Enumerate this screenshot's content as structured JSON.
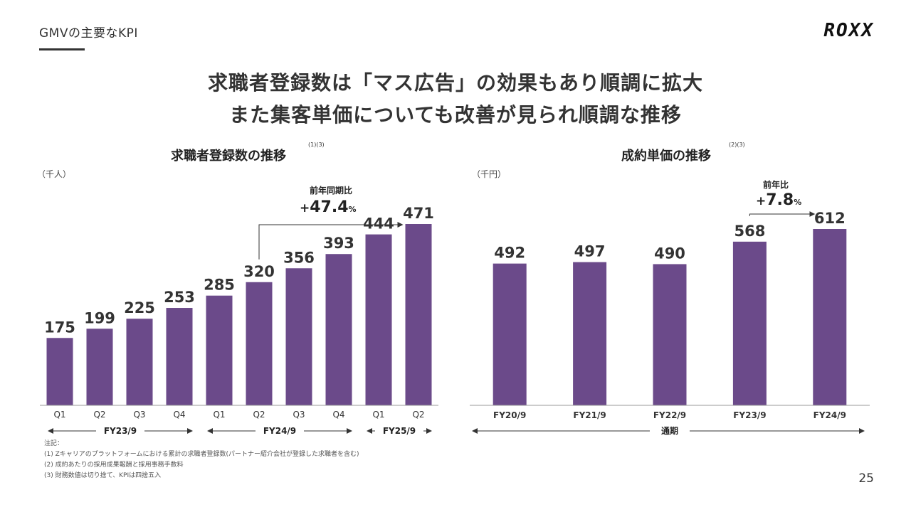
{
  "header": {
    "section_label": "GMVの主要なKPI",
    "logo": "ROXX",
    "headline_1": "求職者登録数は「マス広告」の効果もあり順調に拡大",
    "headline_2": "また集客単価についても改善が見られ順調な推移"
  },
  "left_chart": {
    "title": "求職者登録数の推移",
    "note_mark": "(1)(3)",
    "unit": "（千人）",
    "growth_label": "前年同期比",
    "growth_sign": "+",
    "growth_value": "47.4",
    "growth_pct": "%",
    "periods": [
      {
        "label": "FY23/9"
      },
      {
        "label": "FY24/9"
      },
      {
        "label": "FY25/9"
      }
    ]
  },
  "right_chart": {
    "title": "成約単価の推移",
    "note_mark": "(2)(3)",
    "unit": "（千円）",
    "growth_label": "前年比",
    "growth_sign": "+",
    "growth_value": "7.8",
    "growth_pct": "%",
    "period_label": "通期"
  },
  "colors": {
    "bar": "#6b4a8a",
    "axis": "#999999",
    "text": "#333333"
  },
  "chart_data": [
    {
      "type": "bar",
      "title": "求職者登録数の推移",
      "ylabel": "（千人）",
      "categories": [
        "Q1",
        "Q2",
        "Q3",
        "Q4",
        "Q1",
        "Q2",
        "Q3",
        "Q4",
        "Q1",
        "Q2"
      ],
      "values": [
        175,
        199,
        225,
        253,
        285,
        320,
        356,
        393,
        444,
        471
      ],
      "groups": [
        {
          "label": "FY23/9",
          "categories": [
            "Q1",
            "Q2",
            "Q3",
            "Q4"
          ]
        },
        {
          "label": "FY24/9",
          "categories": [
            "Q1",
            "Q2",
            "Q3",
            "Q4"
          ]
        },
        {
          "label": "FY25/9",
          "categories": [
            "Q1",
            "Q2"
          ]
        }
      ],
      "ylim": [
        0,
        500
      ],
      "grid": false,
      "annotation": {
        "text": "前年同期比 +47.4%",
        "from_category_index": 5,
        "to_category_index": 9
      }
    },
    {
      "type": "bar",
      "title": "成約単価の推移",
      "ylabel": "（千円）",
      "categories": [
        "FY20/9",
        "FY21/9",
        "FY22/9",
        "FY23/9",
        "FY24/9"
      ],
      "values": [
        492,
        497,
        490,
        568,
        612
      ],
      "ylim": [
        0,
        660
      ],
      "grid": false,
      "annotation": {
        "text": "前年比 +7.8%",
        "from_category_index": 3,
        "to_category_index": 4
      }
    }
  ],
  "footnotes": [
    "注記：",
    "(1) Zキャリアのプラットフォームにおける累計の求職者登録数(パートナー紹介会社が登録した求職者を含む)",
    "(2) 成約あたりの採用成果報酬と採用事務手数料",
    "(3) 財務数値は切り捨て、KPIは四捨五入"
  ],
  "page_number": "25"
}
